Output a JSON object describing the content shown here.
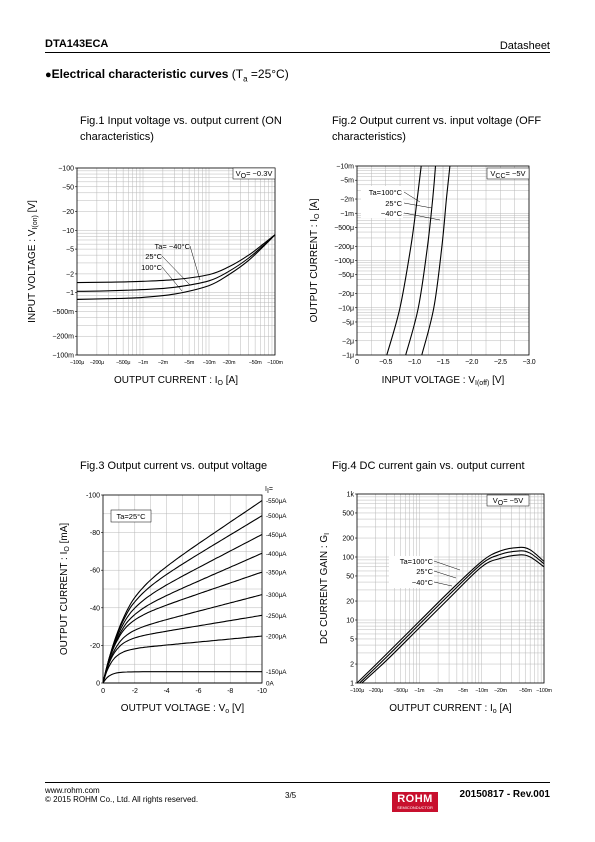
{
  "header": {
    "part_number": "DTA143ECA",
    "doc_type": "Datasheet"
  },
  "section": {
    "bullet": "●",
    "title_bold": "Electrical characteristic curves",
    "title_cond": " (Ta =25°C)"
  },
  "footer": {
    "url": "www.rohm.com",
    "copyright": "© 2015 ROHM Co., Ltd. All rights reserved.",
    "page": "3/5",
    "revision": "20150817 - Rev.001",
    "logo_text": "ROHM",
    "logo_sub": "SEMICONDUCTOR"
  },
  "colors": {
    "grid": "#b8b8b8",
    "curve": "#000000",
    "logo": "#c8102e"
  },
  "chart_data": [
    {
      "id": "fig1",
      "type": "line",
      "title": "Fig.1 Input voltage vs. output current (ON characteristics)",
      "xlabel": "OUTPUT CURRENT : I<sub>O</sub> [A]",
      "ylabel": "INPUT VOLTAGE : V<sub>I(on)</sub> [V]",
      "xscale": "log",
      "yscale": "log",
      "xlim": [
        -0.0001,
        -0.1
      ],
      "ylim": [
        -0.1,
        -100
      ],
      "xticks": [
        {
          "v": -0.0001,
          "label": "−100μ"
        },
        {
          "v": -0.0002,
          "label": "−200μ"
        },
        {
          "v": -0.0005,
          "label": "−500μ"
        },
        {
          "v": -0.001,
          "label": "−1m"
        },
        {
          "v": -0.002,
          "label": "−2m"
        },
        {
          "v": -0.005,
          "label": "−5m"
        },
        {
          "v": -0.01,
          "label": "−10m"
        },
        {
          "v": -0.02,
          "label": "−20m"
        },
        {
          "v": -0.05,
          "label": "−50m"
        },
        {
          "v": -0.1,
          "label": "−100m"
        }
      ],
      "yticks": [
        {
          "v": -0.1,
          "label": "−100m"
        },
        {
          "v": -0.2,
          "label": "−200m"
        },
        {
          "v": -0.5,
          "label": "−500m"
        },
        {
          "v": -1,
          "label": "−1"
        },
        {
          "v": -2,
          "label": "−2"
        },
        {
          "v": -5,
          "label": "−5"
        },
        {
          "v": -10,
          "label": "−10"
        },
        {
          "v": -20,
          "label": "−20"
        },
        {
          "v": -50,
          "label": "−50"
        },
        {
          "v": -100,
          "label": "−100"
        }
      ],
      "annotation": "V<sub>O</sub>= −0.3V",
      "legend": [
        "Ta= −40°C",
        "25°C",
        "100°C"
      ],
      "series": [
        {
          "name": "Ta= −40°C",
          "x": [
            -0.0001,
            -0.0003,
            -0.001,
            -0.003,
            -0.01,
            -0.02,
            -0.04,
            -0.07,
            -0.1
          ],
          "y": [
            -1.45,
            -1.47,
            -1.52,
            -1.62,
            -1.95,
            -2.6,
            -4.0,
            -6.3,
            -8.5
          ]
        },
        {
          "name": "25°C",
          "x": [
            -0.0001,
            -0.0003,
            -0.001,
            -0.003,
            -0.01,
            -0.02,
            -0.04,
            -0.07,
            -0.1
          ],
          "y": [
            -1.05,
            -1.07,
            -1.12,
            -1.22,
            -1.55,
            -2.2,
            -3.6,
            -6.0,
            -8.5
          ]
        },
        {
          "name": "100°C",
          "x": [
            -0.0001,
            -0.0003,
            -0.001,
            -0.003,
            -0.01,
            -0.02,
            -0.04,
            -0.07,
            -0.1
          ],
          "y": [
            -0.78,
            -0.8,
            -0.84,
            -0.95,
            -1.3,
            -1.95,
            -3.3,
            -5.8,
            -8.5
          ]
        }
      ]
    },
    {
      "id": "fig2",
      "type": "line",
      "title": "Fig.2 Output current vs. input voltage (OFF characteristics)",
      "xlabel": "INPUT VOLTAGE : V<sub>I(off)</sub> [V]",
      "ylabel": "OUTPUT CURRENT : I<sub>O</sub> [A]",
      "xscale": "linear",
      "yscale": "log",
      "xlim": [
        0,
        -3.0
      ],
      "ylim": [
        -1e-06,
        -0.01
      ],
      "xticks": [
        {
          "v": 0,
          "label": "0"
        },
        {
          "v": -0.5,
          "label": "−0.5"
        },
        {
          "v": -1.0,
          "label": "−1.0"
        },
        {
          "v": -1.5,
          "label": "−1.5"
        },
        {
          "v": -2.0,
          "label": "−2.0"
        },
        {
          "v": -2.5,
          "label": "−2.5"
        },
        {
          "v": -3.0,
          "label": "−3.0"
        }
      ],
      "yticks": [
        {
          "v": -1e-06,
          "label": "−1μ"
        },
        {
          "v": -2e-06,
          "label": "−2μ"
        },
        {
          "v": -5e-06,
          "label": "−5μ"
        },
        {
          "v": -1e-05,
          "label": "−10μ"
        },
        {
          "v": -2e-05,
          "label": "−20μ"
        },
        {
          "v": -5e-05,
          "label": "−50μ"
        },
        {
          "v": -0.0001,
          "label": "−100μ"
        },
        {
          "v": -0.0002,
          "label": "−200μ"
        },
        {
          "v": -0.0005,
          "label": "−500μ"
        },
        {
          "v": -0.001,
          "label": "−1m"
        },
        {
          "v": -0.002,
          "label": "−2m"
        },
        {
          "v": -0.005,
          "label": "−5m"
        },
        {
          "v": -0.01,
          "label": "−10m"
        }
      ],
      "annotation": "V<sub>CC</sub>= −5V",
      "legend": [
        "Ta=100°C",
        "25°C",
        "−40°C"
      ],
      "series": [
        {
          "name": "Ta=100°C",
          "x": [
            -0.52,
            -0.75,
            -0.94,
            -1.05,
            -1.12
          ],
          "y": [
            -1e-06,
            -1e-05,
            -0.0002,
            -0.002,
            -0.01
          ]
        },
        {
          "name": "25°C",
          "x": [
            -0.85,
            -1.07,
            -1.23,
            -1.32,
            -1.37
          ],
          "y": [
            -1e-06,
            -1e-05,
            -0.0002,
            -0.002,
            -0.01
          ]
        },
        {
          "name": "−40°C",
          "x": [
            -1.13,
            -1.34,
            -1.48,
            -1.56,
            -1.62
          ],
          "y": [
            -1e-06,
            -1e-05,
            -0.0002,
            -0.002,
            -0.01
          ]
        }
      ]
    },
    {
      "id": "fig3",
      "type": "line",
      "title": "Fig.3 Output current vs. output voltage",
      "xlabel": "OUTPUT VOLTAGE : V<sub>o</sub> [V]",
      "ylabel": "OUTPUT CURRENT : I<sub>O</sub> [mA]",
      "xscale": "linear",
      "yscale": "linear",
      "xlim": [
        0,
        -10
      ],
      "ylim": [
        0,
        -100
      ],
      "xticks": [
        {
          "v": 0,
          "label": "0"
        },
        {
          "v": -2,
          "label": "-2"
        },
        {
          "v": -4,
          "label": "-4"
        },
        {
          "v": -6,
          "label": "-6"
        },
        {
          "v": -8,
          "label": "-8"
        },
        {
          "v": -10,
          "label": "-10"
        }
      ],
      "yticks": [
        {
          "v": 0,
          "label": "0"
        },
        {
          "v": -20,
          "label": "-20"
        },
        {
          "v": -40,
          "label": "-40"
        },
        {
          "v": -60,
          "label": "-60"
        },
        {
          "v": -80,
          "label": "-80"
        },
        {
          "v": -100,
          "label": "-100"
        }
      ],
      "annotation": "Ta=25°C",
      "right_label_header": "I<sub>I</sub>=",
      "series": [
        {
          "name": "-550μA",
          "end": -97,
          "sat": -40
        },
        {
          "name": "-500μA",
          "end": -89,
          "sat": -38
        },
        {
          "name": "-450μA",
          "end": -79,
          "sat": -35
        },
        {
          "name": "-400μA",
          "end": -69,
          "sat": -32
        },
        {
          "name": "-350μA",
          "end": -59,
          "sat": -30
        },
        {
          "name": "-300μA",
          "end": -47,
          "sat": -25
        },
        {
          "name": "-250μA",
          "end": -36,
          "sat": -22
        },
        {
          "name": "-200μA",
          "end": -25,
          "sat": -17
        },
        {
          "name": "-150μA",
          "end": -6,
          "sat": -6
        },
        {
          "name": "0A",
          "end": 0,
          "sat": 0
        }
      ]
    },
    {
      "id": "fig4",
      "type": "line",
      "title": "Fig.4 DC current gain vs. output current",
      "xlabel": "OUTPUT CURRENT : I<sub>o</sub> [A]",
      "ylabel": "DC CURRENT GAIN : G<sub>I</sub>",
      "xscale": "log",
      "yscale": "log",
      "xlim": [
        -0.0001,
        -0.1
      ],
      "ylim": [
        1,
        1000
      ],
      "xticks": [
        {
          "v": -0.0001,
          "label": "−100μ"
        },
        {
          "v": -0.0002,
          "label": "−200μ"
        },
        {
          "v": -0.0005,
          "label": "−500μ"
        },
        {
          "v": -0.001,
          "label": "−1m"
        },
        {
          "v": -0.002,
          "label": "−2m"
        },
        {
          "v": -0.005,
          "label": "−5m"
        },
        {
          "v": -0.01,
          "label": "−10m"
        },
        {
          "v": -0.02,
          "label": "−20m"
        },
        {
          "v": -0.05,
          "label": "−50m"
        },
        {
          "v": -0.1,
          "label": "−100m"
        }
      ],
      "yticks": [
        {
          "v": 1,
          "label": "1"
        },
        {
          "v": 2,
          "label": "2"
        },
        {
          "v": 5,
          "label": "5"
        },
        {
          "v": 10,
          "label": "10"
        },
        {
          "v": 20,
          "label": "20"
        },
        {
          "v": 50,
          "label": "50"
        },
        {
          "v": 100,
          "label": "100"
        },
        {
          "v": 200,
          "label": "200"
        },
        {
          "v": 500,
          "label": "500"
        },
        {
          "v": 1000,
          "label": "1k"
        }
      ],
      "annotation": "V<sub>O</sub>= −5V",
      "legend": [
        "Ta=100°C",
        "25°C",
        "−40°C"
      ],
      "series": [
        {
          "name": "Ta=100°C",
          "x": [
            -0.0001,
            -0.0003,
            -0.001,
            -0.003,
            -0.01,
            -0.02,
            -0.04,
            -0.06,
            -0.1
          ],
          "y": [
            1.0,
            2.9,
            9.5,
            28,
            85,
            125,
            142,
            130,
            85
          ]
        },
        {
          "name": "25°C",
          "x": [
            -0.00011,
            -0.0003,
            -0.001,
            -0.003,
            -0.01,
            -0.02,
            -0.04,
            -0.06,
            -0.1
          ],
          "y": [
            1.0,
            2.6,
            8.5,
            25,
            78,
            110,
            125,
            115,
            78
          ]
        },
        {
          "name": "−40°C",
          "x": [
            -0.00012,
            -0.0003,
            -0.001,
            -0.003,
            -0.01,
            -0.02,
            -0.04,
            -0.06,
            -0.1
          ],
          "y": [
            1.0,
            2.3,
            7.5,
            22,
            70,
            95,
            108,
            100,
            70
          ]
        }
      ]
    }
  ]
}
